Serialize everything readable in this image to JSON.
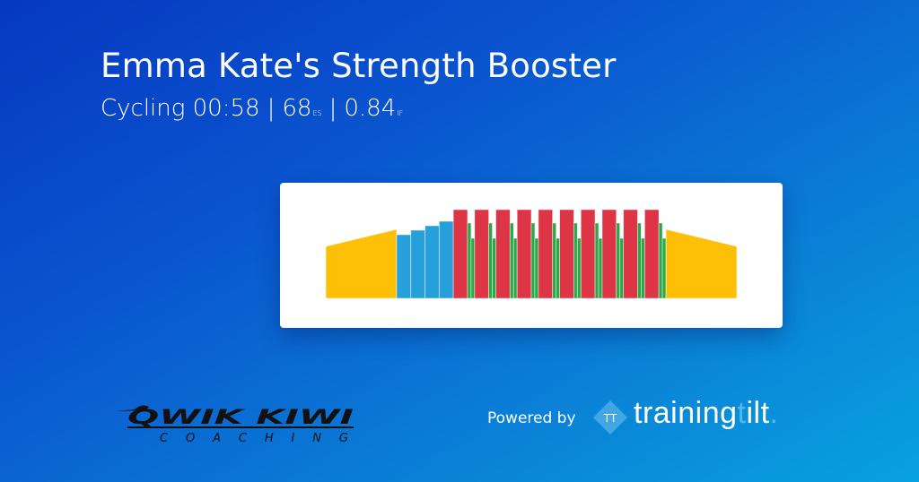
{
  "header": {
    "title": "Emma Kate's Strength Booster",
    "sport": "Cycling",
    "duration": "00:58",
    "es_value": "68",
    "es_label": "ES",
    "if_value": "0.84",
    "if_label": "IF",
    "separator": "|"
  },
  "chart_data": {
    "type": "bar",
    "description_units": "duration in minutes, relative intensity",
    "colors": {
      "warmup": "#fdc006",
      "endurance": "#279fdb",
      "interval": "#dd3545",
      "recovery": "#2aa847"
    },
    "segments": [
      {
        "zone": "warmup",
        "duration": 10,
        "start": 58,
        "end": 77
      },
      {
        "zone": "endurance",
        "duration": 2,
        "start": 71,
        "end": 71
      },
      {
        "zone": "endurance",
        "duration": 2,
        "start": 76,
        "end": 76
      },
      {
        "zone": "endurance",
        "duration": 2,
        "start": 81,
        "end": 81
      },
      {
        "zone": "endurance",
        "duration": 2,
        "start": 86,
        "end": 86
      },
      {
        "repeat": 10,
        "set": [
          {
            "zone": "interval",
            "duration": 2,
            "start": 99,
            "end": 99
          },
          {
            "zone": "recovery",
            "duration": 0.5,
            "start": 84,
            "end": 84
          },
          {
            "zone": "recovery",
            "duration": 0.5,
            "start": 67,
            "end": 67
          }
        ]
      },
      {
        "zone": "warmup",
        "duration": 10,
        "start": 77,
        "end": 58
      }
    ]
  },
  "footer": {
    "coach_logo_top": "QWIK KIWI",
    "coach_logo_bottom": "COACHING",
    "powered_by": "Powered by",
    "brand_mark": "TT",
    "brand_name_a": "training",
    "brand_name_b": "t",
    "brand_name_c": "ilt",
    "brand_name_d": "."
  }
}
